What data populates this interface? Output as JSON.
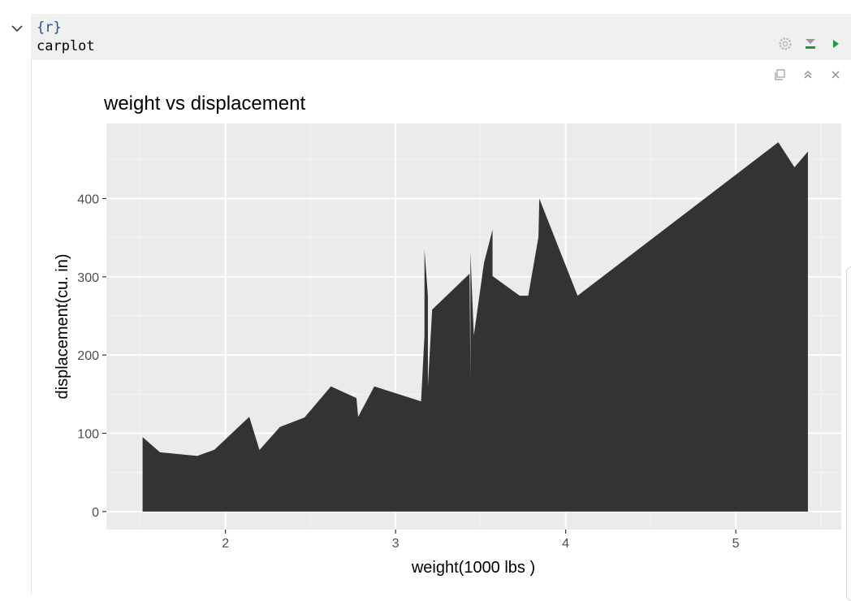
{
  "chunk": {
    "header": "{r}",
    "code": "carplot"
  },
  "icons": {
    "collapse": "chevron-down-icon",
    "settings": "gear-icon",
    "run_above": "run-previous-chunks-icon",
    "run_chunk": "run-chunk-play-icon",
    "expand_output": "show-in-window-icon",
    "collapse_output": "collapse-output-icon",
    "clear_output": "close-icon"
  },
  "colors": {
    "code_header": "#2b4b87",
    "panel_bg": "#ebebeb",
    "area_fill": "#333333",
    "run_green": "#1a9c3e"
  },
  "chart_data": {
    "type": "area",
    "title": "weight vs displacement",
    "xlabel": "weight(1000 lbs )",
    "ylabel": "displacement(cu. in)",
    "xlim": [
      1.3,
      5.62
    ],
    "ylim": [
      -23,
      496
    ],
    "xticks": [
      2,
      3,
      4,
      5
    ],
    "yticks": [
      0,
      100,
      200,
      300,
      400
    ],
    "grid": true,
    "legend": "none",
    "x": [
      1.513,
      1.615,
      1.835,
      1.935,
      2.14,
      2.2,
      2.32,
      2.465,
      2.62,
      2.77,
      2.78,
      2.875,
      3.15,
      3.17,
      3.17,
      3.19,
      3.19,
      3.215,
      3.435,
      3.44,
      3.44,
      3.46,
      3.52,
      3.57,
      3.57,
      3.73,
      3.78,
      3.84,
      3.845,
      4.07,
      5.25,
      5.345,
      5.424
    ],
    "values": [
      95.1,
      75.7,
      71.1,
      79.0,
      121.0,
      78.7,
      108.0,
      120.3,
      160.0,
      145.0,
      121.0,
      160.0,
      140.8,
      225.0,
      335.0,
      275.8,
      160.0,
      258.0,
      304.0,
      167.6,
      332.0,
      225.0,
      318.0,
      360.0,
      301.0,
      275.8,
      275.8,
      351.0,
      400.0,
      275.8,
      472.0,
      440.0,
      460.0
    ]
  }
}
